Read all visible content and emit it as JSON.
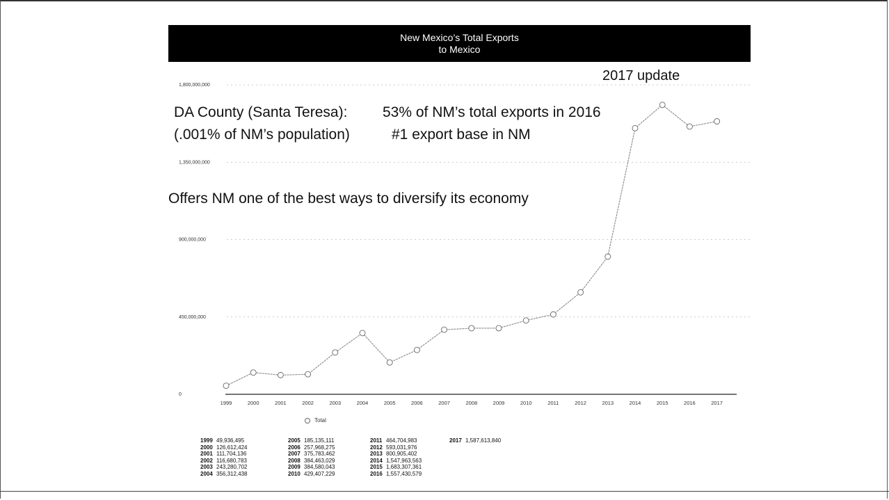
{
  "header": {
    "title_line1": "New Mexico’s Total Exports",
    "title_line2": "to Mexico"
  },
  "annotations": {
    "update": "2017 update",
    "county_label": "DA County (Santa Teresa):",
    "share_text": "53% of NM’s total exports in 2016",
    "population_text": "(.001% of NM’s population)",
    "rank_text": "#1 export base in NM",
    "diversify_text": "Offers NM one of the best ways to diversify its economy"
  },
  "legend": {
    "marker_icon": "circle-marker-icon",
    "label": "Total"
  },
  "chart_data": {
    "type": "line",
    "x": [
      "1999",
      "2000",
      "2001",
      "2002",
      "2003",
      "2004",
      "2005",
      "2006",
      "2007",
      "2008",
      "2009",
      "2010",
      "2011",
      "2012",
      "2013",
      "2014",
      "2015",
      "2016",
      "2017"
    ],
    "series": [
      {
        "name": "Total",
        "values": [
          49936495,
          126612424,
          111704136,
          116680783,
          243280702,
          356312438,
          185135111,
          257968275,
          375783462,
          384463029,
          384580043,
          429407229,
          464704983,
          593031976,
          800905402,
          1547963563,
          1683307361,
          1557430579,
          1587613840
        ],
        "color": "#888888"
      }
    ],
    "xlabel": "",
    "ylabel": "",
    "ylim": [
      0,
      1800000000
    ],
    "yticks": [
      "0",
      "450,000,000",
      "900,000,000",
      "1,350,000,000",
      "1,800,000,000"
    ],
    "ytick_values": [
      0,
      450000000,
      900000000,
      1350000000,
      1800000000
    ],
    "grid": true,
    "legend_position": "bottom-left"
  },
  "table": {
    "columns": [
      [
        {
          "year": "1999",
          "value": "49,936,495"
        },
        {
          "year": "2000",
          "value": "126,612,424"
        },
        {
          "year": "2001",
          "value": "111,704,136"
        },
        {
          "year": "2002",
          "value": "116,680,783"
        },
        {
          "year": "2003",
          "value": "243,280,702"
        },
        {
          "year": "2004",
          "value": "356,312,438"
        }
      ],
      [
        {
          "year": "2005",
          "value": "185,135,111"
        },
        {
          "year": "2006",
          "value": "257,968,275"
        },
        {
          "year": "2007",
          "value": "375,783,462"
        },
        {
          "year": "2008",
          "value": "384,463,029"
        },
        {
          "year": "2009",
          "value": "384,580,043"
        },
        {
          "year": "2010",
          "value": "429,407,229"
        }
      ],
      [
        {
          "year": "2011",
          "value": "464,704,983"
        },
        {
          "year": "2012",
          "value": "593,031,976"
        },
        {
          "year": "2013",
          "value": "800,905,402"
        },
        {
          "year": "2014",
          "value": "1,547,963,563"
        },
        {
          "year": "2015",
          "value": "1,683,307,361"
        },
        {
          "year": "2016",
          "value": "1,557,430,579"
        }
      ],
      [
        {
          "year": "2017",
          "value": "1,587,613,840"
        }
      ]
    ]
  }
}
